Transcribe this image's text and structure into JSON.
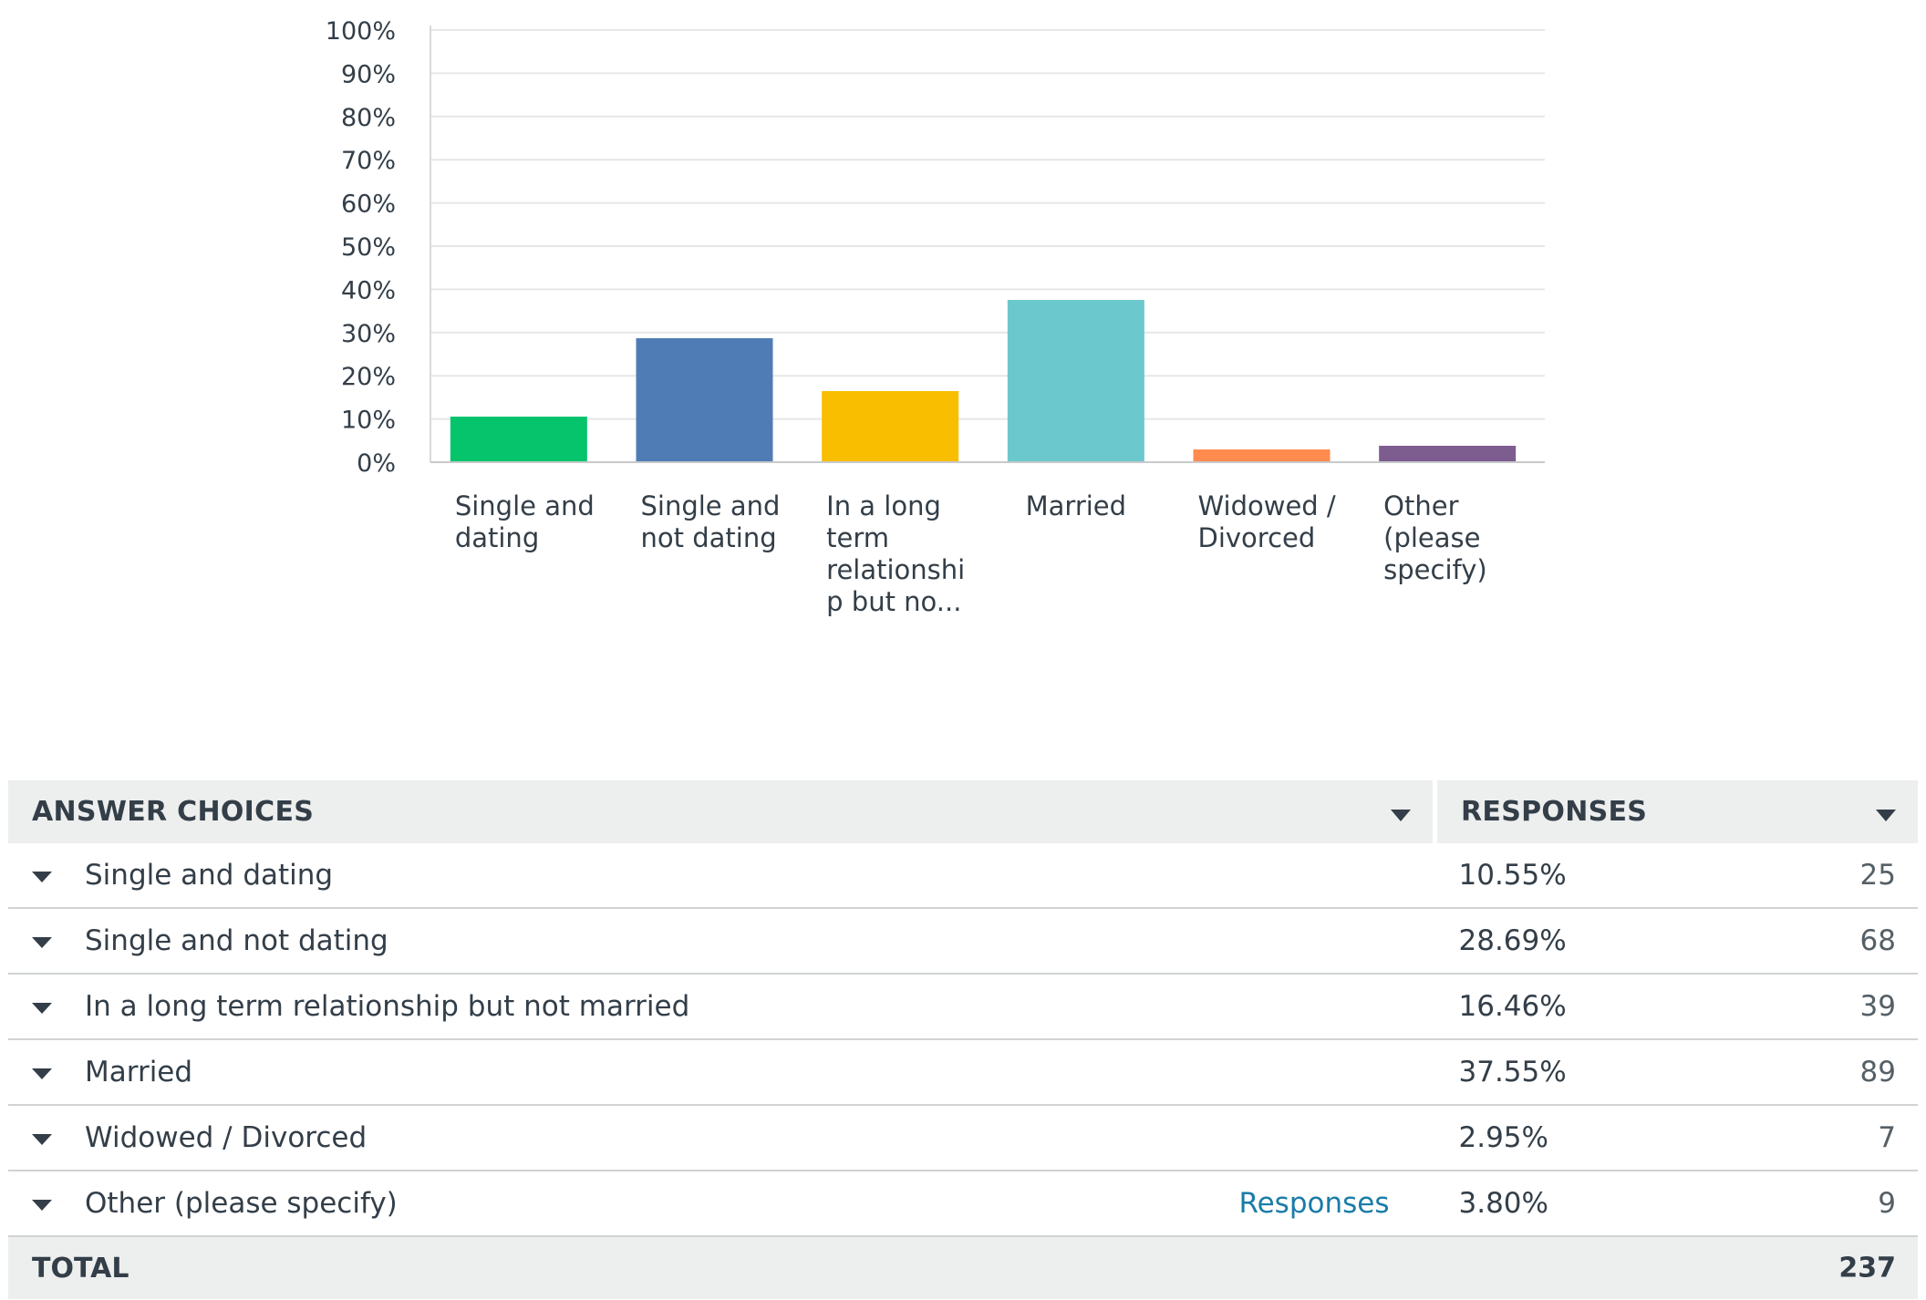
{
  "chart_data": {
    "type": "bar",
    "categories": [
      "Single and dating",
      "Single and not dating",
      "In a long term relationship but no...",
      "Married",
      "Widowed / Divorced",
      "Other (please specify)"
    ],
    "category_label_lines": [
      [
        "Single and",
        "dating"
      ],
      [
        "Single and",
        "not dating"
      ],
      [
        "In a long",
        "term",
        "relationshi",
        "p but no..."
      ],
      [
        "Married"
      ],
      [
        "Widowed /",
        "Divorced"
      ],
      [
        "Other",
        "(please",
        "specify)"
      ]
    ],
    "values": [
      10.55,
      28.69,
      16.46,
      37.55,
      2.95,
      3.8
    ],
    "colors": [
      "#05c46b",
      "#507cb6",
      "#f9be00",
      "#6bc8cd",
      "#ff8b4f",
      "#7d5c8f"
    ],
    "ylim": [
      0,
      100
    ],
    "yticks": [
      "0%",
      "10%",
      "20%",
      "30%",
      "40%",
      "50%",
      "60%",
      "70%",
      "80%",
      "90%",
      "100%"
    ],
    "grid": true,
    "title": "",
    "xlabel": "",
    "ylabel": ""
  },
  "table": {
    "headers": {
      "choices": "ANSWER CHOICES",
      "responses": "RESPONSES"
    },
    "rows": [
      {
        "choice": "Single and dating",
        "percent": "10.55%",
        "count": "25"
      },
      {
        "choice": "Single and not dating",
        "percent": "28.69%",
        "count": "68"
      },
      {
        "choice": "In a long term relationship but not married",
        "percent": "16.46%",
        "count": "39"
      },
      {
        "choice": "Married",
        "percent": "37.55%",
        "count": "89"
      },
      {
        "choice": "Widowed / Divorced",
        "percent": "2.95%",
        "count": "7"
      },
      {
        "choice": "Other (please specify)",
        "percent": "3.80%",
        "count": "9",
        "link": "Responses"
      }
    ],
    "total": {
      "label": "TOTAL",
      "count": "237"
    }
  }
}
